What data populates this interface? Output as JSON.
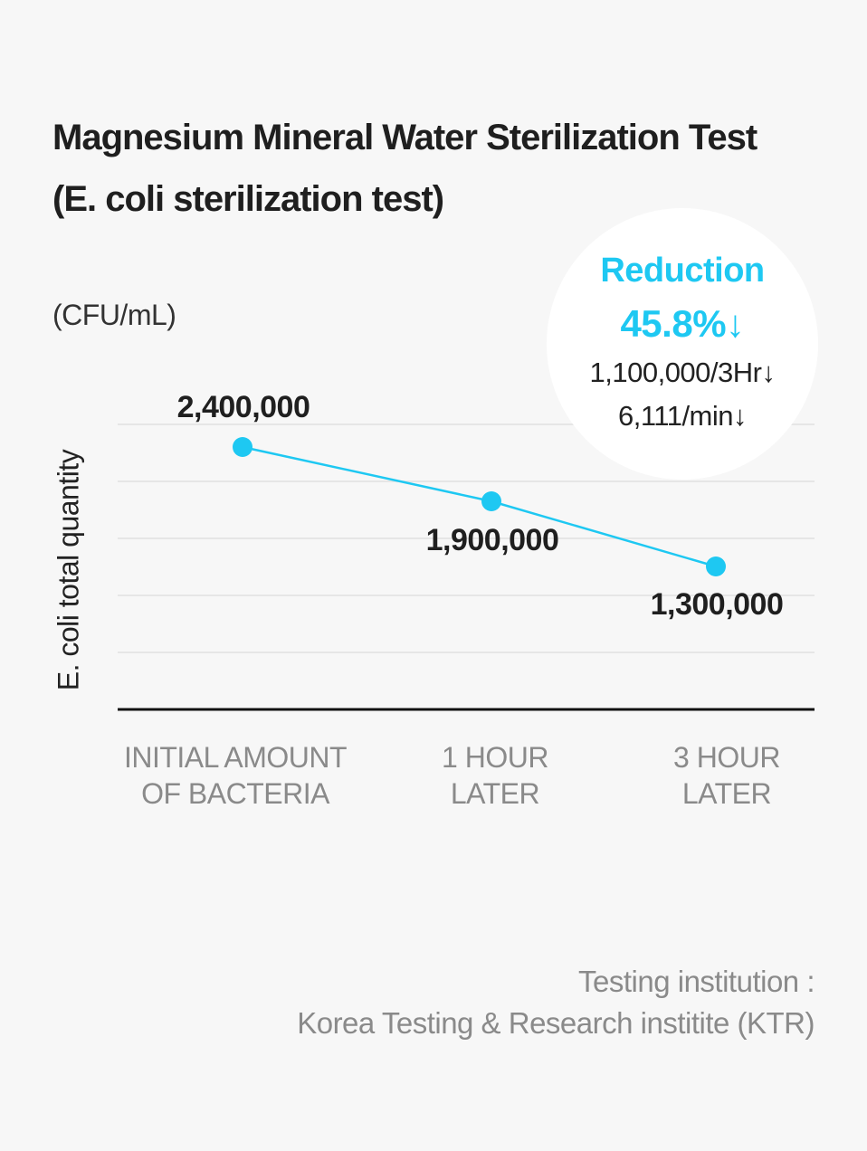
{
  "title_line1": "Magnesium Mineral Water Sterilization Test",
  "title_line2": "(E. coli sterilization test)",
  "unit_label": "(CFU/mL)",
  "callout": {
    "title": "Reduction",
    "percent": "45.8%↓",
    "line1": "1,100,000/3Hr↓",
    "line2": "6,111/min↓"
  },
  "source": {
    "line1": "Testing institution :",
    "line2": "Korea Testing & Research institite (KTR)"
  },
  "colors": {
    "accent": "#1ec8f2",
    "background": "#f7f7f7",
    "grid": "#e6e6e6",
    "axis": "#111111",
    "category_text": "#8a8a8a"
  },
  "chart_data": {
    "type": "line",
    "ylabel": "E. coli total quantity",
    "xlabel": "",
    "categories": [
      [
        "INITIAL AMOUNT",
        "OF BACTERIA"
      ],
      [
        "1 HOUR",
        "LATER"
      ],
      [
        "3 HOUR",
        "LATER"
      ]
    ],
    "values": [
      2400000,
      1900000,
      1300000
    ],
    "value_labels": [
      "2,400,000",
      "1,900,000",
      "1,300,000"
    ],
    "grid": true,
    "ylim": [
      0,
      2900000
    ]
  }
}
